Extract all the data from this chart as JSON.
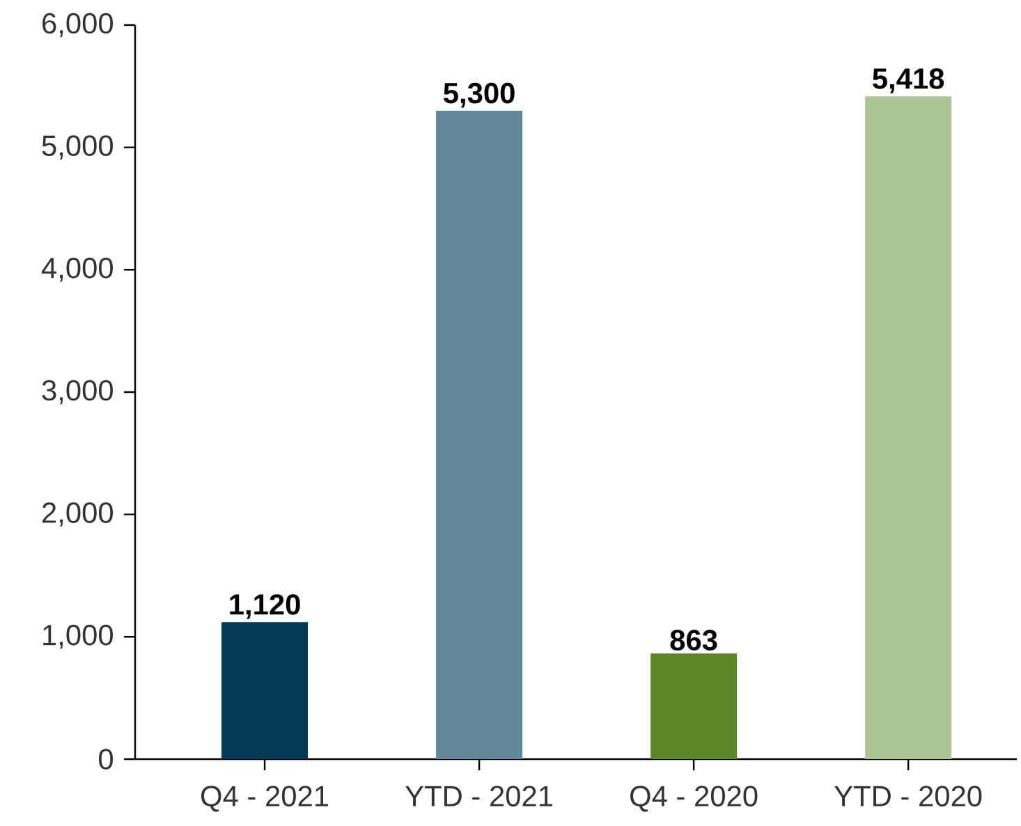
{
  "chart_data": {
    "type": "bar",
    "categories": [
      "Q4 - 2021",
      "YTD - 2021",
      "Q4 - 2020",
      "YTD - 2020"
    ],
    "values": [
      1120,
      5300,
      863,
      5418
    ],
    "colors": [
      "#053a57",
      "#628799",
      "#5d8728",
      "#adc494"
    ],
    "value_labels": [
      "1,120",
      "5,300",
      "863",
      "5,418"
    ],
    "ylim": [
      0,
      6000
    ],
    "yticks": [
      0,
      {
        "value": 1000,
        "label": "1,000"
      },
      {
        "value": 2000,
        "label": "2,000"
      },
      {
        "value": 3000,
        "label": "3,000"
      },
      {
        "value": 4000,
        "label": "4,000"
      },
      {
        "value": 5000,
        "label": "5,000"
      },
      {
        "value": 6000,
        "label": "6,000"
      }
    ],
    "grid": false
  }
}
